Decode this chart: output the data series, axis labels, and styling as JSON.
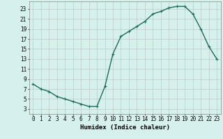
{
  "x": [
    0,
    1,
    2,
    3,
    4,
    5,
    6,
    7,
    8,
    9,
    10,
    11,
    12,
    13,
    14,
    15,
    16,
    17,
    18,
    19,
    20,
    21,
    22,
    23
  ],
  "y": [
    8.0,
    7.0,
    6.5,
    5.5,
    5.0,
    4.5,
    4.0,
    3.5,
    3.5,
    7.5,
    14.0,
    17.5,
    18.5,
    19.5,
    20.5,
    22.0,
    22.5,
    23.2,
    23.5,
    23.5,
    22.0,
    19.0,
    15.5,
    13.0
  ],
  "line_color": "#1a6b5a",
  "marker": "+",
  "marker_size": 3,
  "background_color": "#d6f0ee",
  "grid_color": "#c0c8c8",
  "xlabel": "Humidex (Indice chaleur)",
  "xlim": [
    -0.5,
    23.5
  ],
  "ylim": [
    2.0,
    24.5
  ],
  "xticks": [
    0,
    1,
    2,
    3,
    4,
    5,
    6,
    7,
    8,
    9,
    10,
    11,
    12,
    13,
    14,
    15,
    16,
    17,
    18,
    19,
    20,
    21,
    22,
    23
  ],
  "yticks": [
    3,
    5,
    7,
    9,
    11,
    13,
    15,
    17,
    19,
    21,
    23
  ],
  "tick_fontsize": 5.5,
  "xlabel_fontsize": 6.5,
  "line_width": 1.0
}
